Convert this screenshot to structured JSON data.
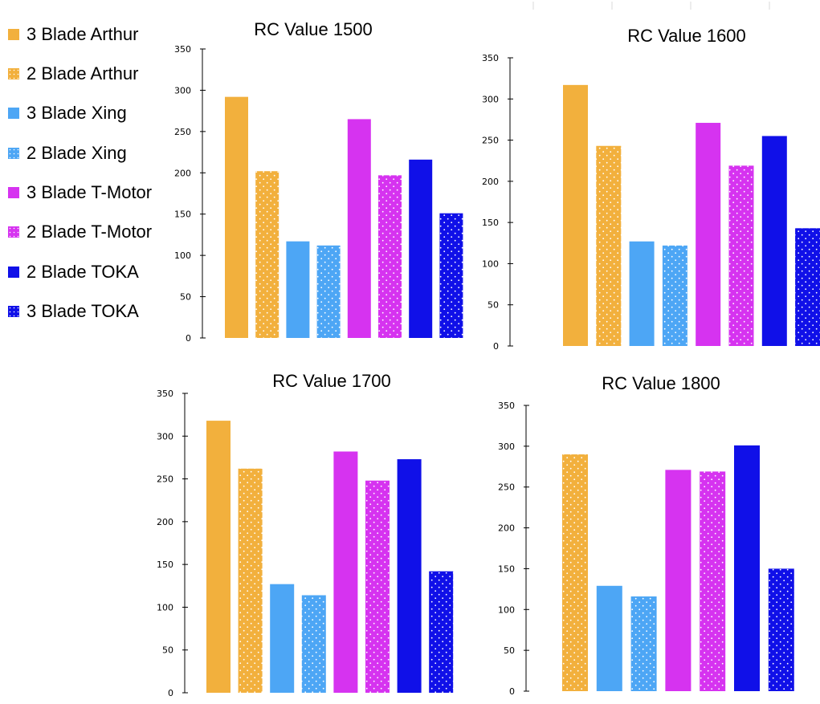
{
  "legend": {
    "items": [
      {
        "label": "3 Blade Arthur",
        "color": "#f2b03d",
        "pattern": "solid"
      },
      {
        "label": "2 Blade Arthur",
        "color": "#f2b03d",
        "pattern": "dotted"
      },
      {
        "label": "3 Blade Xing",
        "color": "#4da6f5",
        "pattern": "solid"
      },
      {
        "label": "2 Blade Xing",
        "color": "#4da6f5",
        "pattern": "dotted"
      },
      {
        "label": "3 Blade T-Motor",
        "color": "#d633f0",
        "pattern": "solid"
      },
      {
        "label": "2 Blade T-Motor",
        "color": "#d633f0",
        "pattern": "dotted"
      },
      {
        "label": "2 Blade TOKA",
        "color": "#1010e8",
        "pattern": "solid"
      },
      {
        "label": "3 Blade TOKA",
        "color": "#1010e8",
        "pattern": "dotted"
      }
    ]
  },
  "chart_data": [
    {
      "type": "bar",
      "title": "RC Value 1500",
      "ylim": [
        0,
        350
      ],
      "yticks": [
        0,
        50,
        100,
        150,
        200,
        250,
        300,
        350
      ],
      "xlabel": "",
      "ylabel": "",
      "legend": "left",
      "series": [
        {
          "name": "3 Blade Arthur",
          "value": 292
        },
        {
          "name": "2 Blade Arthur",
          "value": 202
        },
        {
          "name": "3 Blade Xing",
          "value": 117
        },
        {
          "name": "2 Blade Xing",
          "value": 112
        },
        {
          "name": "3 Blade T-Motor",
          "value": 265
        },
        {
          "name": "2 Blade T-Motor",
          "value": 197
        },
        {
          "name": "2 Blade TOKA",
          "value": 216
        },
        {
          "name": "3 Blade TOKA",
          "value": 151
        }
      ]
    },
    {
      "type": "bar",
      "title": "RC Value 1600",
      "ylim": [
        0,
        350
      ],
      "yticks": [
        0,
        50,
        100,
        150,
        200,
        250,
        300,
        350
      ],
      "xlabel": "",
      "ylabel": "",
      "series": [
        {
          "name": "3 Blade Arthur",
          "value": 317
        },
        {
          "name": "2 Blade Arthur",
          "value": 243
        },
        {
          "name": "3 Blade Xing",
          "value": 127
        },
        {
          "name": "2 Blade Xing",
          "value": 122
        },
        {
          "name": "3 Blade T-Motor",
          "value": 271
        },
        {
          "name": "2 Blade T-Motor",
          "value": 219
        },
        {
          "name": "2 Blade TOKA",
          "value": 255
        },
        {
          "name": "3 Blade TOKA",
          "value": 143
        }
      ]
    },
    {
      "type": "bar",
      "title": "RC Value 1700",
      "ylim": [
        0,
        350
      ],
      "yticks": [
        0,
        50,
        100,
        150,
        200,
        250,
        300,
        350
      ],
      "xlabel": "",
      "ylabel": "",
      "series": [
        {
          "name": "3 Blade Arthur",
          "value": 318
        },
        {
          "name": "2 Blade Arthur",
          "value": 262
        },
        {
          "name": "3 Blade Xing",
          "value": 127
        },
        {
          "name": "2 Blade Xing",
          "value": 114
        },
        {
          "name": "3 Blade T-Motor",
          "value": 282
        },
        {
          "name": "2 Blade T-Motor",
          "value": 248
        },
        {
          "name": "2 Blade TOKA",
          "value": 273
        },
        {
          "name": "3 Blade TOKA",
          "value": 142
        }
      ]
    },
    {
      "type": "bar",
      "title": "RC Value 1800",
      "ylim": [
        0,
        350
      ],
      "yticks": [
        0,
        50,
        100,
        150,
        200,
        250,
        300,
        350
      ],
      "xlabel": "",
      "ylabel": "",
      "series": [
        {
          "name": "2 Blade Arthur",
          "value": 290
        },
        {
          "name": "3 Blade Xing",
          "value": 129
        },
        {
          "name": "2 Blade Xing",
          "value": 116
        },
        {
          "name": "3 Blade T-Motor",
          "value": 271
        },
        {
          "name": "2 Blade T-Motor",
          "value": 269
        },
        {
          "name": "2 Blade TOKA",
          "value": 301
        },
        {
          "name": "3 Blade TOKA",
          "value": 150
        }
      ]
    }
  ]
}
